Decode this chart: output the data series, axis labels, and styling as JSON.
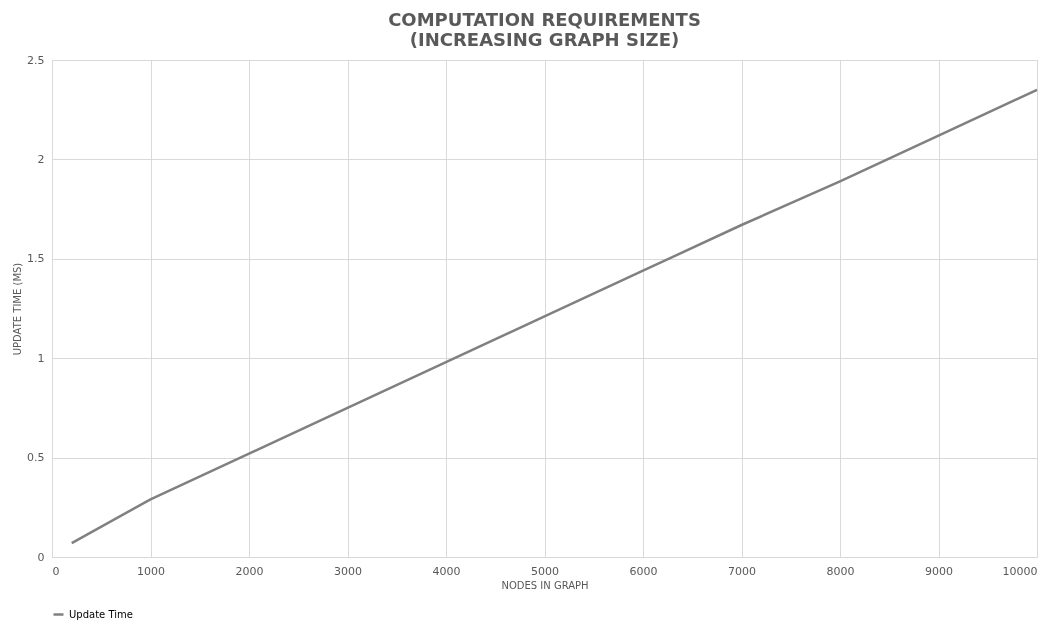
{
  "chart_data": {
    "type": "line",
    "title": [
      "COMPUTATION REQUIREMENTS",
      "(INCREASING GRAPH SIZE)"
    ],
    "xlabel": "NODES IN GRAPH",
    "ylabel": "UPDATE TIME (MS)",
    "x": [
      200,
      1000,
      2000,
      3000,
      4000,
      5000,
      6000,
      7000,
      8000,
      9000,
      10000
    ],
    "series": [
      {
        "name": "Update Time",
        "color": "#808080",
        "values": [
          0.07,
          0.29,
          0.52,
          0.75,
          0.98,
          1.21,
          1.44,
          1.67,
          1.89,
          2.12,
          2.35
        ]
      }
    ],
    "xlim": [
      0,
      10000
    ],
    "xticks": [
      0,
      1000,
      2000,
      3000,
      4000,
      5000,
      6000,
      7000,
      8000,
      9000,
      10000
    ],
    "ylim": [
      0,
      2.5
    ],
    "yticks": [
      0,
      0.5,
      1,
      1.5,
      2,
      2.5
    ],
    "grid": true,
    "legend": "bottom",
    "marker": "none",
    "line_style": "solid"
  }
}
